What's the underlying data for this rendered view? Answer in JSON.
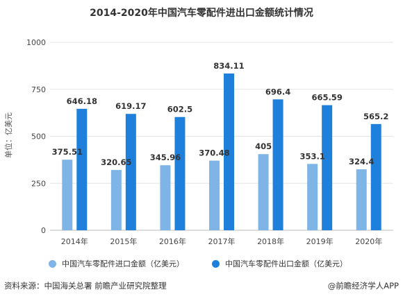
{
  "title": "2014-2020年中国汽车零配件进出口金额统计情况",
  "chart_data": {
    "type": "bar",
    "title": "2014-2020年中国汽车零配件进出口金额统计情况",
    "ylabel": "单位：亿美元",
    "xlabel": "",
    "categories": [
      "2014年",
      "2015年",
      "2016年",
      "2017年",
      "2018年",
      "2019年",
      "2020年"
    ],
    "ylim": [
      0,
      1000
    ],
    "yticks": [
      0,
      250,
      500,
      750,
      1000
    ],
    "grid": true,
    "legend_position": "bottom",
    "series": [
      {
        "name": "中国汽车零配件进口金额（亿美元）",
        "color": "#7fb4e6",
        "values": [
          375.51,
          320.65,
          345.96,
          370.48,
          405,
          353.1,
          324.4
        ],
        "labels": [
          "375.51",
          "320.65",
          "345.96",
          "370.48",
          "405",
          "353.1",
          "324.4"
        ]
      },
      {
        "name": "中国汽车零配件出口金额（亿美元）",
        "color": "#1f80dc",
        "values": [
          646.18,
          619.17,
          602.5,
          834.11,
          696.4,
          665.59,
          565.2
        ],
        "labels": [
          "646.18",
          "619.17",
          "602.5",
          "834.11",
          "696.4",
          "665.59",
          "565.2"
        ]
      }
    ]
  },
  "footer": {
    "source": "资料来源：中国海关总署 前瞻产业研究院整理",
    "brand": "@前瞻经济学人APP"
  }
}
